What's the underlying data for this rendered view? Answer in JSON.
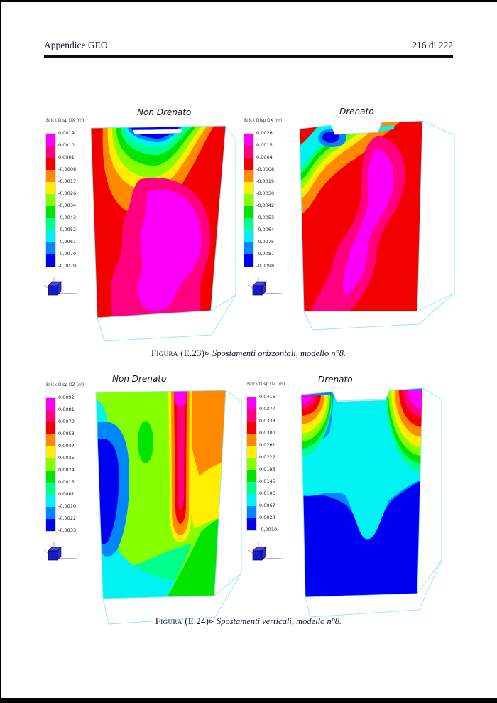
{
  "header": {
    "left": "Appendice GEO",
    "right": "216 di 222"
  },
  "figures": [
    {
      "caption_label": "Figura (E.23)",
      "caption_marker": "⊳",
      "caption_text": "Spostamenti orizzontali, modello n°8.",
      "plots": [
        {
          "title": "Non Drenato",
          "legend_title": "Brick Disp DX  (m)",
          "legend_values": [
            "0,0019",
            "0,0010",
            "0,0001",
            "-0,0008",
            "-0,0017",
            "-0,0026",
            "-0,0034",
            "-0,0043",
            "-0,0052",
            "-0,0061",
            "-0,0070",
            "-0,0079"
          ]
        },
        {
          "title": "Drenato",
          "legend_title": "Brick Disp DX  (m)",
          "legend_values": [
            "0,0026",
            "0,0015",
            "0,0004",
            "-0,0008",
            "-0,0019",
            "-0,0030",
            "-0,0042",
            "-0,0053",
            "-0,0064",
            "-0,0075",
            "-0,0087",
            "-0,0098"
          ]
        }
      ]
    },
    {
      "caption_label": "Figura (E.24)",
      "caption_marker": "⊳",
      "caption_text": "Spostamenti verticali, modello n°8.",
      "plots": [
        {
          "title": "Non Drenato",
          "legend_title": "Brick Disp DZ  (m)",
          "legend_values": [
            "0,0092",
            "0,0081",
            "0,0070",
            "0,0058",
            "0,0047",
            "0,0035",
            "0,0024",
            "0,0013",
            "0,0001",
            "-0,0010",
            "-0,0022",
            "-0,0033"
          ]
        },
        {
          "title": "Drenato",
          "legend_title": "Brick Disp DZ  (m)",
          "legend_values": [
            "0,0416",
            "0,0377",
            "0,0338",
            "0,0300",
            "0,0261",
            "0,0222",
            "0,0183",
            "0,0145",
            "0,0106",
            "0,0067",
            "0,0028",
            "-0,0010"
          ]
        }
      ]
    }
  ],
  "palette": {
    "bands": [
      "#fa00fa",
      "#ff0080",
      "#f20000",
      "#ff8a00",
      "#ffee00",
      "#86ff00",
      "#00e400",
      "#00ff8c",
      "#00f2f2",
      "#0086ff",
      "#0000f0"
    ],
    "wireframe": "#8fe8e8",
    "page_background": "#ffffff",
    "frame": "#000000",
    "text": "#15152b"
  },
  "chart_data": [
    {
      "type": "heatmap",
      "subtype": "3d-contour",
      "figure": "E.23",
      "title": "Non Drenato",
      "quantity": "Brick Disp DX (m)",
      "levels": [
        0.0019,
        0.001,
        0.0001,
        -0.0008,
        -0.0017,
        -0.0026,
        -0.0034,
        -0.0043,
        -0.0052,
        -0.0061,
        -0.007,
        -0.0079
      ],
      "legend_position": "left",
      "grid": false
    },
    {
      "type": "heatmap",
      "subtype": "3d-contour",
      "figure": "E.23",
      "title": "Drenato",
      "quantity": "Brick Disp DX (m)",
      "levels": [
        0.0026,
        0.0015,
        0.0004,
        -0.0008,
        -0.0019,
        -0.003,
        -0.0042,
        -0.0053,
        -0.0064,
        -0.0075,
        -0.0087,
        -0.0098
      ],
      "legend_position": "left",
      "grid": false
    },
    {
      "type": "heatmap",
      "subtype": "3d-contour",
      "figure": "E.24",
      "title": "Non Drenato",
      "quantity": "Brick Disp DZ (m)",
      "levels": [
        0.0092,
        0.0081,
        0.007,
        0.0058,
        0.0047,
        0.0035,
        0.0024,
        0.0013,
        0.0001,
        -0.001,
        -0.0022,
        -0.0033
      ],
      "legend_position": "left",
      "grid": false
    },
    {
      "type": "heatmap",
      "subtype": "3d-contour",
      "figure": "E.24",
      "title": "Drenato",
      "quantity": "Brick Disp DZ (m)",
      "levels": [
        0.0416,
        0.0377,
        0.0338,
        0.03,
        0.0261,
        0.0222,
        0.0183,
        0.0145,
        0.0106,
        0.0067,
        0.0028,
        -0.001
      ],
      "legend_position": "left",
      "grid": false
    }
  ]
}
